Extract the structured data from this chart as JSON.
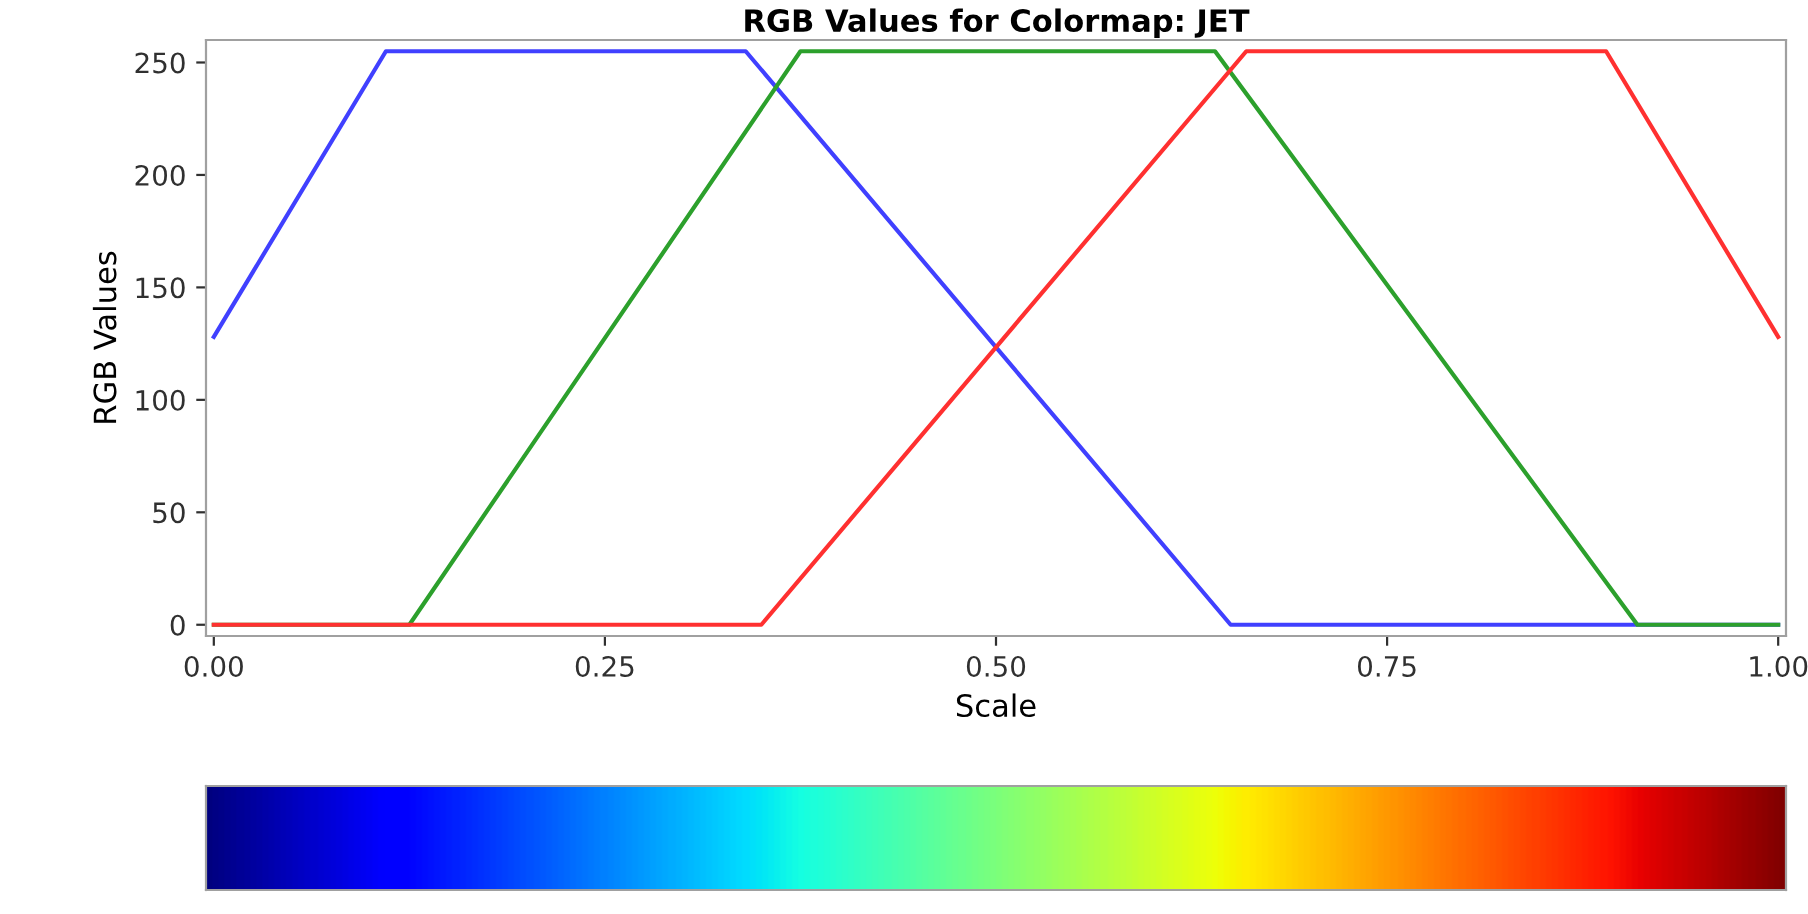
{
  "chart_data": {
    "type": "line",
    "title": "RGB Values for Colormap: JET",
    "xlabel": "Scale",
    "ylabel": "RGB Values",
    "series": [
      {
        "color": "#4040ff",
        "x": [
          0,
          0.11,
          0.34,
          0.65,
          1
        ],
        "values": [
          128,
          255,
          255,
          0,
          0
        ]
      },
      {
        "color": "#2ca02c",
        "x": [
          0,
          0.125,
          0.375,
          0.64,
          0.91,
          1
        ],
        "values": [
          0,
          0,
          255,
          255,
          0,
          0
        ]
      },
      {
        "color": "#ff3030",
        "x": [
          0,
          0.35,
          0.66,
          0.89,
          1
        ],
        "values": [
          0,
          0,
          255,
          255,
          128
        ]
      }
    ],
    "xlim": [
      -0.005,
      1.005
    ],
    "ylim": [
      -5,
      260
    ],
    "xticks": [
      {
        "value": 0,
        "label": "0.00"
      },
      {
        "value": 0.25,
        "label": "0.25"
      },
      {
        "value": 0.5,
        "label": "0.50"
      },
      {
        "value": 0.75,
        "label": "0.75"
      },
      {
        "value": 1,
        "label": "1.00"
      }
    ],
    "yticks": [
      0,
      50,
      100,
      150,
      200,
      250
    ],
    "grid": false,
    "legend": false
  }
}
